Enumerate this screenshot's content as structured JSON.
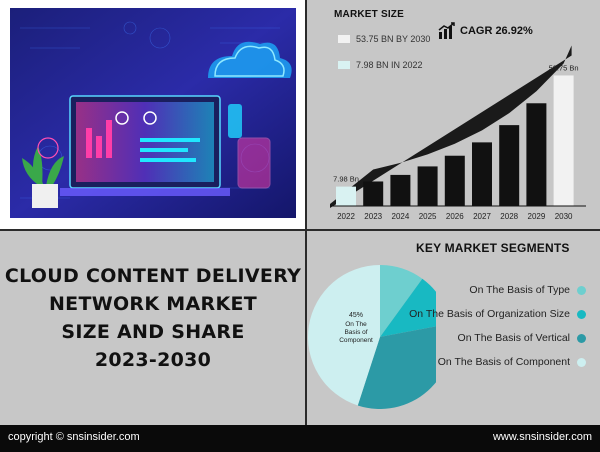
{
  "header": {
    "market_size_label": "MARKET SIZE",
    "legend": [
      {
        "label": "53.75 BN BY 2030",
        "color": "#f2f2f2"
      },
      {
        "label": "7.98 BN IN 2022",
        "color": "#d9f2f2"
      }
    ],
    "cagr_label": "CAGR 26.92%"
  },
  "title_lines": [
    "CLOUD CONTENT DELIVERY",
    "NETWORK MARKET",
    "SIZE AND SHARE",
    "2023-2030"
  ],
  "segments": {
    "heading": "KEY MARKET SEGMENTS",
    "items": [
      {
        "label": "On The Basis of Type",
        "color": "#6ecfcf"
      },
      {
        "label": "On The Basis of Organization Size",
        "color": "#18b9c2"
      },
      {
        "label": "On The Basis of Vertical",
        "color": "#2c9aa6"
      },
      {
        "label": "On The Basis of Component",
        "color": "#cdeff0"
      }
    ]
  },
  "footer": {
    "copyright": "copyright © snsinsider.com",
    "website": "www.snsinsider.com"
  },
  "chart_data": [
    {
      "type": "bar",
      "categories": [
        "2022",
        "2023",
        "2024",
        "2025",
        "2026",
        "2027",
        "2028",
        "2029",
        "2030"
      ],
      "values": [
        7.98,
        10.1,
        12.8,
        16.3,
        20.7,
        26.2,
        33.3,
        42.3,
        53.75
      ],
      "data_labels": {
        "2022": "7.98 Bn",
        "2030": "53.75 Bn"
      },
      "colors": {
        "first": "#d9f2f2",
        "middle": "#111111",
        "last": "#f2f2f2"
      },
      "ylim": [
        0,
        56
      ],
      "grid": false
    },
    {
      "type": "pie",
      "labels": [
        "On The Basis of Type",
        "On The Basis of Organization Size",
        "On The Basis of Vertical",
        "On The Basis of Component"
      ],
      "values": [
        10,
        12,
        33,
        45
      ],
      "slice_label": {
        "value": "45%",
        "text": "On The Basis of Component"
      },
      "colors": [
        "#6ecfcf",
        "#18b9c2",
        "#2c9aa6",
        "#cdeff0"
      ]
    }
  ]
}
